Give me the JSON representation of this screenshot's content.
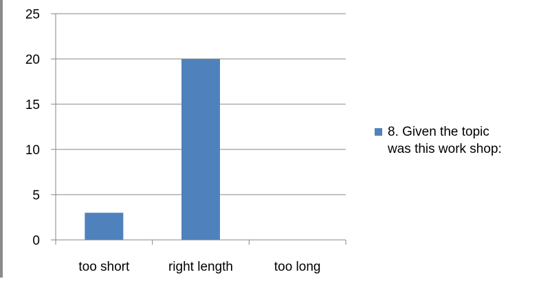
{
  "chart_data": {
    "type": "bar",
    "categories": [
      "too short",
      "right length",
      "too long"
    ],
    "series": [
      {
        "name": "8. Given the topic was this work shop:",
        "values": [
          3,
          20,
          0
        ]
      }
    ],
    "y_ticks": [
      "0",
      "5",
      "10",
      "15",
      "20",
      "25"
    ],
    "ylim": [
      0,
      25
    ],
    "grid": true,
    "legend": {
      "position": "right",
      "lines": [
        "8. Given the topic",
        "was this work shop:"
      ]
    },
    "colors": {
      "bar": "#4f81bd",
      "grid": "#868686",
      "axis": "#868686"
    }
  }
}
